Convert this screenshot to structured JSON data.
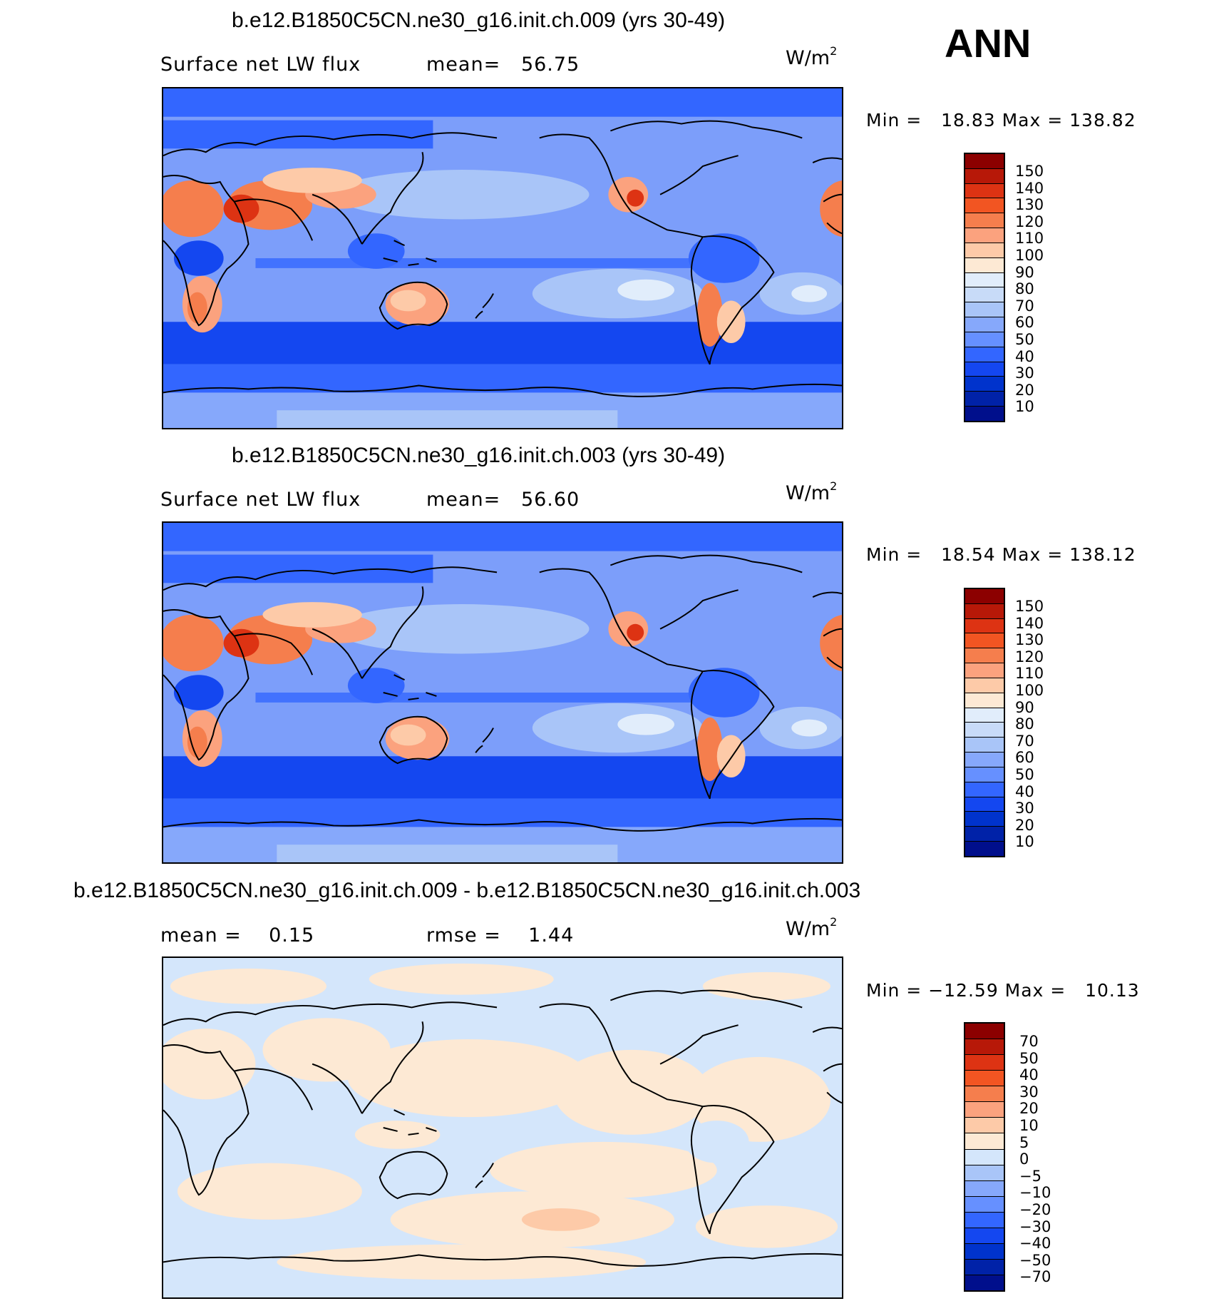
{
  "season": "ANN",
  "panels": [
    {
      "title": "b.e12.B1850C5CN.ne30_g16.init.ch.009 (yrs 30-49)",
      "variable": "Surface net LW flux",
      "stat1": "mean=   56.75",
      "stat2": "",
      "units": "W/m",
      "units_exp": "2",
      "minmax": "Min =   18.83 Max = 138.82",
      "palette": [
        "#000f8c",
        "#0022a8",
        "#0033cc",
        "#1447f0",
        "#3366ff",
        "#6690ff",
        "#86a8fb",
        "#a9c5f8",
        "#c8dbf8",
        "#e1edfb",
        "#fde9d4",
        "#fdcaa8",
        "#fba27e",
        "#f57e4d",
        "#f25522",
        "#dd3313",
        "#b71808",
        "#8c0000"
      ],
      "ticks": [
        "150",
        "140",
        "130",
        "120",
        "110",
        "100",
        "90",
        "80",
        "70",
        "60",
        "50",
        "40",
        "30",
        "20",
        "10"
      ],
      "ocean_color": "#7c9efa"
    },
    {
      "title": "b.e12.B1850C5CN.ne30_g16.init.ch.003 (yrs 30-49)",
      "variable": "Surface net LW flux",
      "stat1": "mean=   56.60",
      "stat2": "",
      "units": "W/m",
      "units_exp": "2",
      "minmax": "Min =   18.54 Max = 138.12",
      "palette": [
        "#000f8c",
        "#0022a8",
        "#0033cc",
        "#1447f0",
        "#3366ff",
        "#6690ff",
        "#86a8fb",
        "#a9c5f8",
        "#c8dbf8",
        "#e1edfb",
        "#fde9d4",
        "#fdcaa8",
        "#fba27e",
        "#f57e4d",
        "#f25522",
        "#dd3313",
        "#b71808",
        "#8c0000"
      ],
      "ticks": [
        "150",
        "140",
        "130",
        "120",
        "110",
        "100",
        "90",
        "80",
        "70",
        "60",
        "50",
        "40",
        "30",
        "20",
        "10"
      ],
      "ocean_color": "#7c9efa"
    },
    {
      "title": "b.e12.B1850C5CN.ne30_g16.init.ch.009 - b.e12.B1850C5CN.ne30_g16.init.ch.003",
      "variable": "",
      "stat1": "mean =    0.15",
      "stat2": "rmse =    1.44",
      "units": "W/m",
      "units_exp": "2",
      "minmax": "Min = −12.59 Max =   10.13",
      "palette": [
        "#000f8c",
        "#0022a8",
        "#0033cc",
        "#1447f0",
        "#3366ff",
        "#6690ff",
        "#86a8fb",
        "#a9c5f8",
        "#d4e6fb",
        "#fde9d4",
        "#fdcaa8",
        "#fba27e",
        "#f57e4d",
        "#f25522",
        "#dd3313",
        "#b71808",
        "#8c0000"
      ],
      "ticks": [
        "70",
        "50",
        "40",
        "30",
        "20",
        "10",
        "5",
        "0",
        "−5",
        "−10",
        "−20",
        "−30",
        "−40",
        "−50",
        "−70"
      ],
      "ocean_color": "#d4e6fb"
    }
  ]
}
